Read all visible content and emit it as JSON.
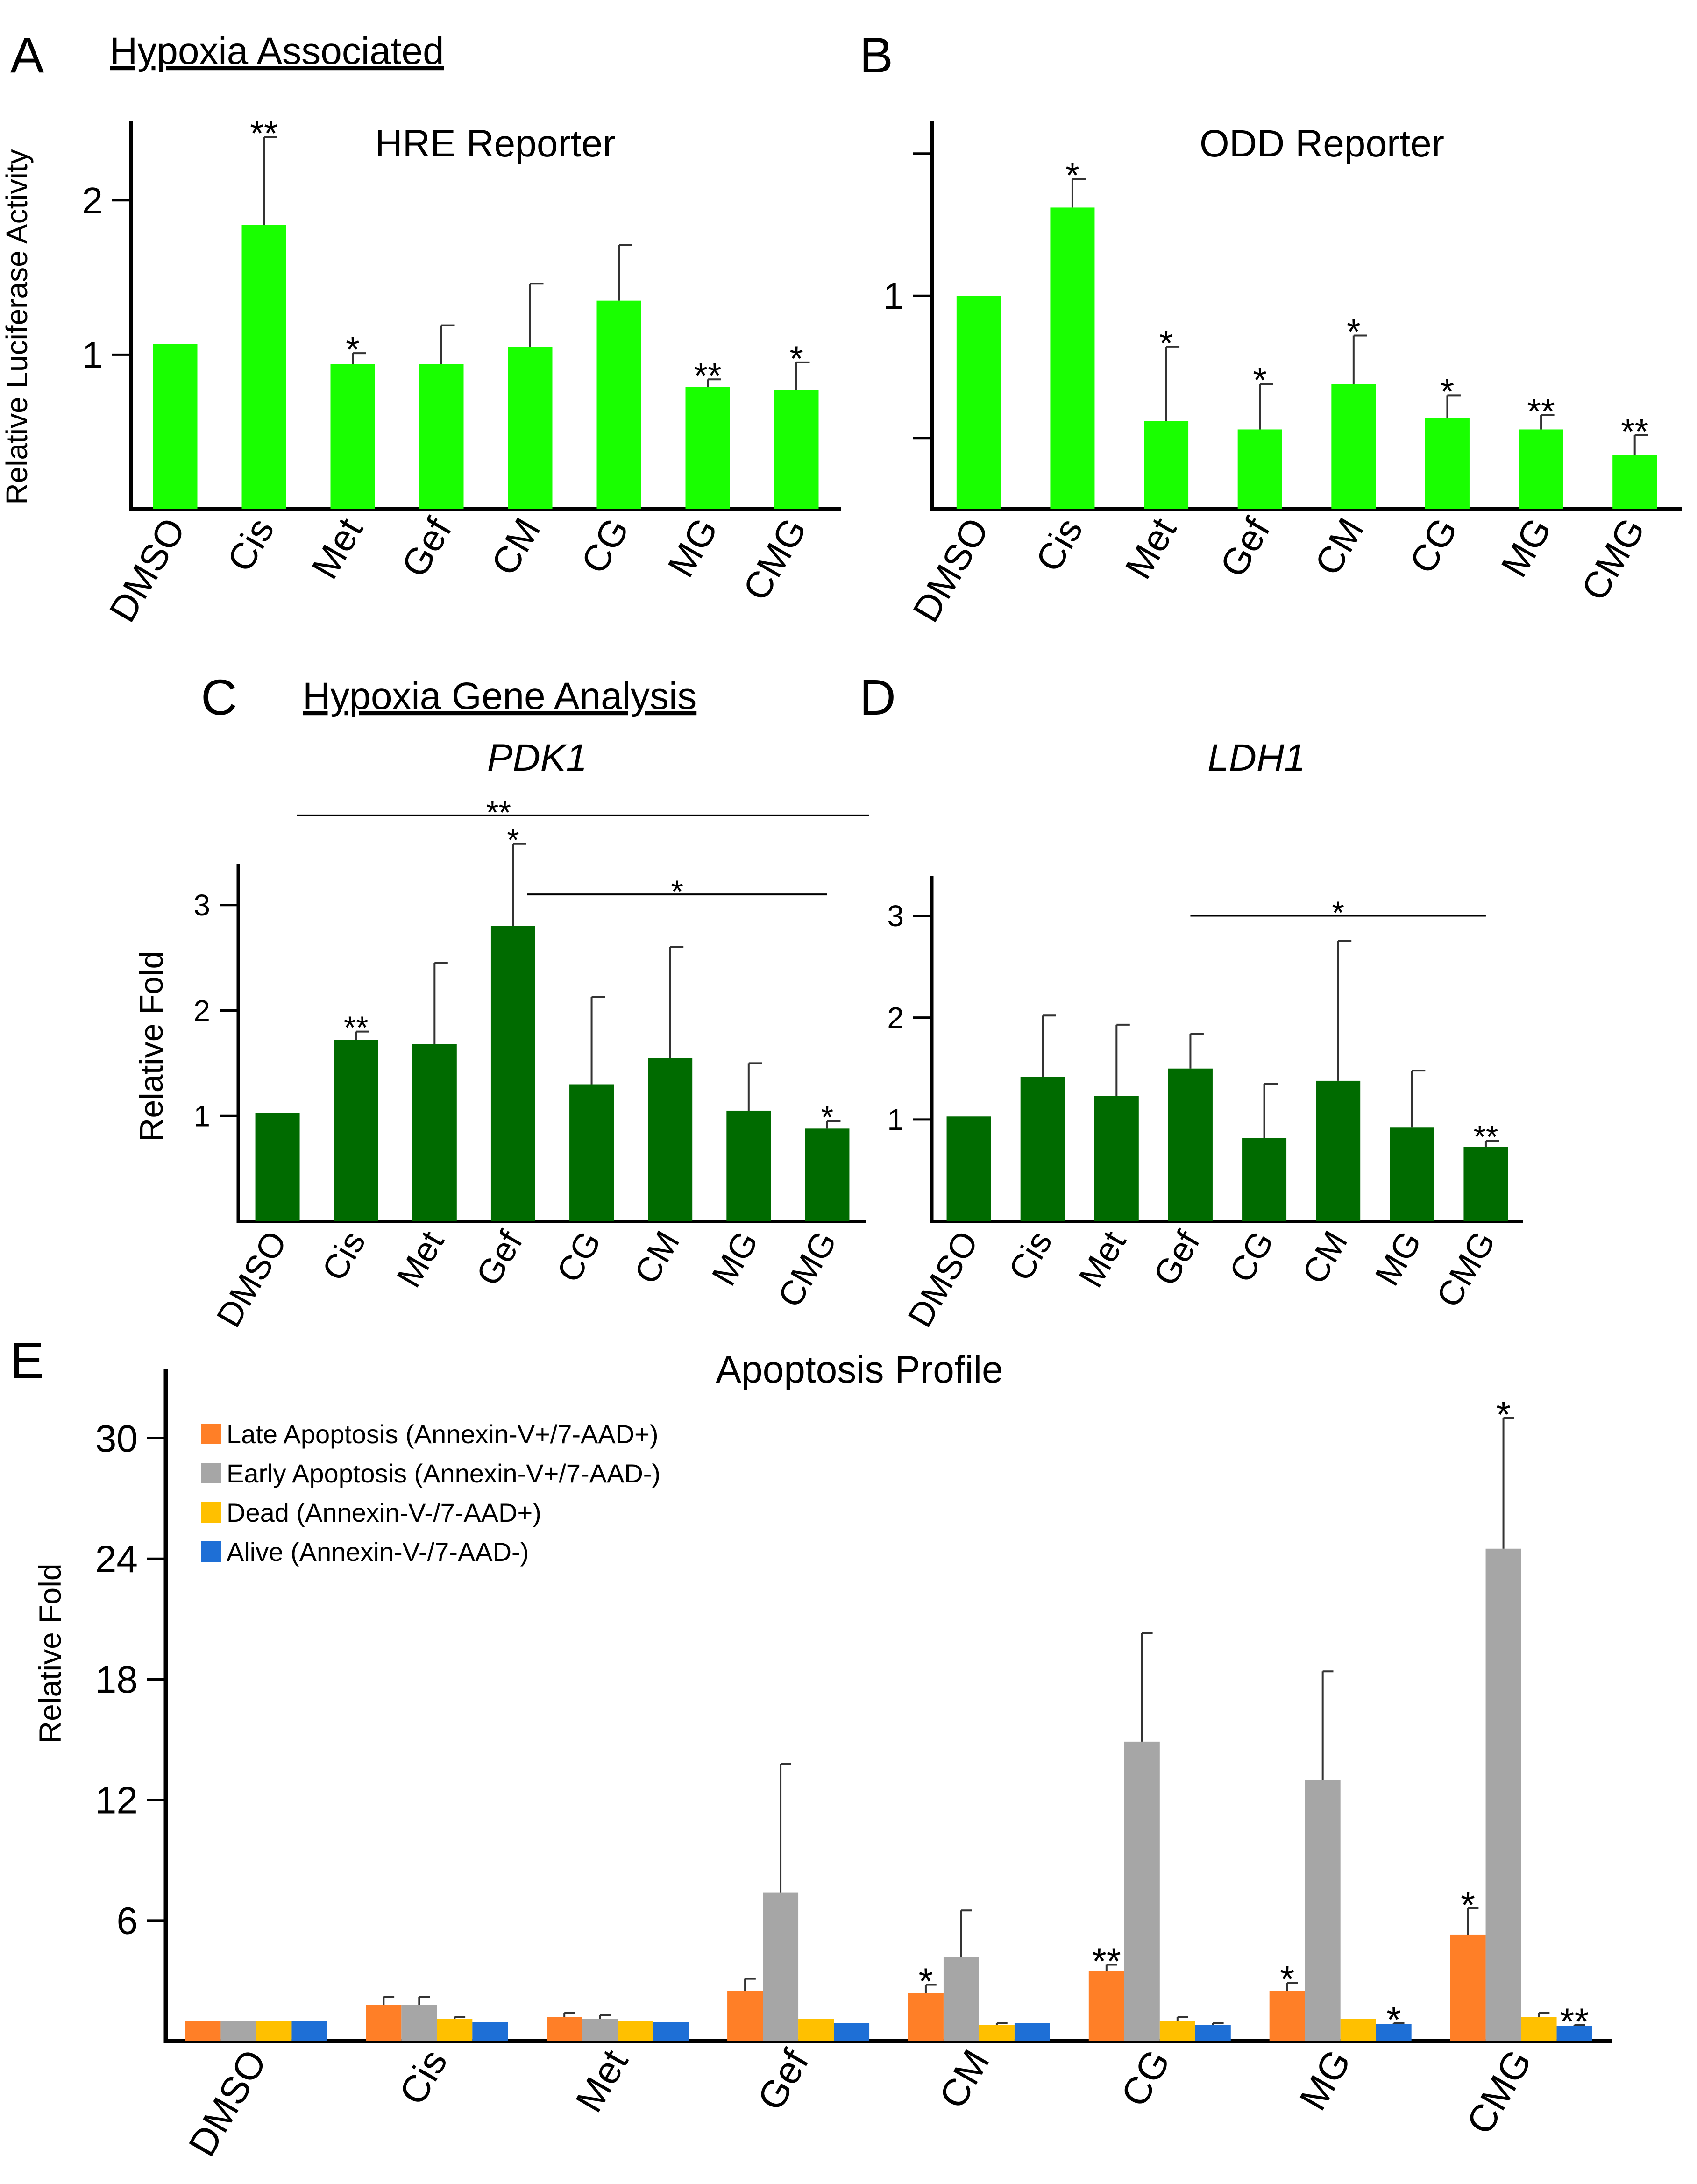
{
  "figure": {
    "heading_a": "Hypoxia Associated",
    "heading_c": "Hypoxia Gene Analysis"
  },
  "chart_data": [
    {
      "id": "A",
      "type": "bar",
      "letter": "A",
      "title": "HRE Reporter",
      "title_italic": false,
      "xlabel": "",
      "ylabel": "Relative Luciferase Activity",
      "ylim": [
        0,
        2.45
      ],
      "yticks": [
        1,
        2
      ],
      "color": "#19ff00",
      "categories": [
        "DMSO",
        "Cis",
        "Met",
        "Gef",
        "CM",
        "CG",
        "MG",
        "CMG"
      ],
      "series": [
        {
          "name": "HRE Reporter",
          "values": [
            1.07,
            1.84,
            0.94,
            0.94,
            1.05,
            1.35,
            0.79,
            0.77
          ],
          "errors": [
            0.0,
            0.57,
            0.07,
            0.25,
            0.41,
            0.36,
            0.05,
            0.18
          ]
        }
      ],
      "annotations": [
        "",
        "**",
        "*",
        "",
        "",
        "",
        "**",
        "*"
      ],
      "brackets": []
    },
    {
      "id": "B",
      "type": "bar",
      "letter": "B",
      "title": "ODD Reporter",
      "title_italic": false,
      "xlabel": "",
      "ylabel": "",
      "ylim": [
        0.25,
        1.58
      ],
      "yticks": [
        0.5,
        1,
        1.5
      ],
      "ytick_labels": [
        "",
        "1",
        ""
      ],
      "color": "#19ff00",
      "categories": [
        "DMSO",
        "Cis",
        "Met",
        "Gef",
        "CM",
        "CG",
        "MG",
        "CMG"
      ],
      "series": [
        {
          "name": "ODD Reporter",
          "values": [
            1.0,
            1.31,
            0.56,
            0.53,
            0.69,
            0.57,
            0.53,
            0.44
          ],
          "errors": [
            0.0,
            0.1,
            0.26,
            0.16,
            0.17,
            0.08,
            0.05,
            0.07
          ]
        }
      ],
      "annotations": [
        "",
        "*",
        "*",
        "*",
        "*",
        "*",
        "**",
        "**"
      ],
      "brackets": []
    },
    {
      "id": "C",
      "type": "bar",
      "letter": "C",
      "title": "PDK1",
      "title_italic": true,
      "xlabel": "",
      "ylabel": "Relative Fold",
      "ylim": [
        0,
        3.3
      ],
      "yticks": [
        1,
        2,
        3
      ],
      "color": "#006b00",
      "categories": [
        "DMSO",
        "Cis",
        "Met",
        "Gef",
        "CG",
        "CM",
        "MG",
        "CMG"
      ],
      "series": [
        {
          "name": "PDK1",
          "values": [
            1.03,
            1.72,
            1.68,
            2.8,
            1.3,
            1.55,
            1.05,
            0.88
          ],
          "errors": [
            0.0,
            0.08,
            0.77,
            0.78,
            0.83,
            1.05,
            0.45,
            0.07
          ]
        }
      ],
      "annotations": [
        "",
        "**",
        "",
        "*",
        "",
        "",
        "",
        "*"
      ],
      "brackets": [
        {
          "from": "Cis",
          "to": "CMG",
          "label": "**",
          "level": 3.85
        },
        {
          "from": "Gef",
          "to": "CMG",
          "label": "*",
          "level": 3.1
        }
      ]
    },
    {
      "id": "D",
      "type": "bar",
      "letter": "D",
      "title": "LDH1",
      "title_italic": true,
      "xlabel": "",
      "ylabel": "",
      "ylim": [
        0,
        3.3
      ],
      "yticks": [
        1,
        2,
        3
      ],
      "color": "#006b00",
      "categories": [
        "DMSO",
        "Cis",
        "Met",
        "Gef",
        "CG",
        "CM",
        "MG",
        "CMG"
      ],
      "series": [
        {
          "name": "LDH1",
          "values": [
            1.03,
            1.42,
            1.23,
            1.5,
            0.82,
            1.38,
            0.92,
            0.73
          ],
          "errors": [
            0.0,
            0.6,
            0.7,
            0.34,
            0.53,
            1.37,
            0.56,
            0.06
          ]
        }
      ],
      "annotations": [
        "",
        "",
        "",
        "",
        "",
        "",
        "",
        "**"
      ],
      "brackets": [
        {
          "from": "Gef",
          "to": "CMG",
          "label": "*",
          "level": 3.0
        }
      ]
    },
    {
      "id": "E",
      "type": "bar",
      "letter": "E",
      "title": "Apoptosis Profile",
      "title_italic": false,
      "xlabel": "",
      "ylabel": "Relative Fold",
      "ylim": [
        0,
        33
      ],
      "yticks": [
        6,
        12,
        18,
        24,
        30
      ],
      "legend_position": "top-left",
      "categories": [
        "DMSO",
        "Cis",
        "Met",
        "Gef",
        "CM",
        "CG",
        "MG",
        "CMG"
      ],
      "series": [
        {
          "name": "Late Apoptosis (Annexin-V+/7-AAD+)",
          "color": "#ff7f27",
          "values": [
            1.0,
            1.8,
            1.2,
            2.5,
            2.4,
            3.5,
            2.5,
            5.3
          ],
          "errors": [
            0.0,
            0.4,
            0.2,
            0.6,
            0.4,
            0.3,
            0.4,
            1.3
          ],
          "annotations": [
            "",
            "",
            "",
            "",
            "*",
            "**",
            "*",
            "*"
          ]
        },
        {
          "name": "Early Apoptosis (Annexin-V+/7-AAD-)",
          "color": "#a6a6a6",
          "values": [
            1.0,
            1.8,
            1.1,
            7.4,
            4.2,
            14.9,
            13.0,
            24.5
          ],
          "errors": [
            0.0,
            0.4,
            0.2,
            6.4,
            2.3,
            5.4,
            5.4,
            6.5
          ],
          "annotations": [
            "",
            "",
            "",
            "",
            "",
            "",
            "",
            "*"
          ]
        },
        {
          "name": "Dead (Annexin-V-/7-AAD+)",
          "color": "#ffc000",
          "values": [
            1.0,
            1.1,
            1.0,
            1.1,
            0.8,
            1.0,
            1.1,
            1.2
          ],
          "errors": [
            0.0,
            0.1,
            0.0,
            0.0,
            0.1,
            0.2,
            0.0,
            0.2
          ],
          "annotations": [
            "",
            "",
            "",
            "",
            "",
            "",
            "",
            ""
          ]
        },
        {
          "name": "Alive (Annexin-V-/7-AAD-)",
          "color": "#1e6fd6",
          "values": [
            1.0,
            0.95,
            0.95,
            0.9,
            0.9,
            0.8,
            0.85,
            0.75
          ],
          "errors": [
            0.0,
            0.0,
            0.0,
            0.0,
            0.0,
            0.1,
            0.05,
            0.05
          ],
          "annotations": [
            "",
            "",
            "",
            "",
            "",
            "",
            "*",
            "**"
          ]
        }
      ],
      "brackets": []
    }
  ]
}
